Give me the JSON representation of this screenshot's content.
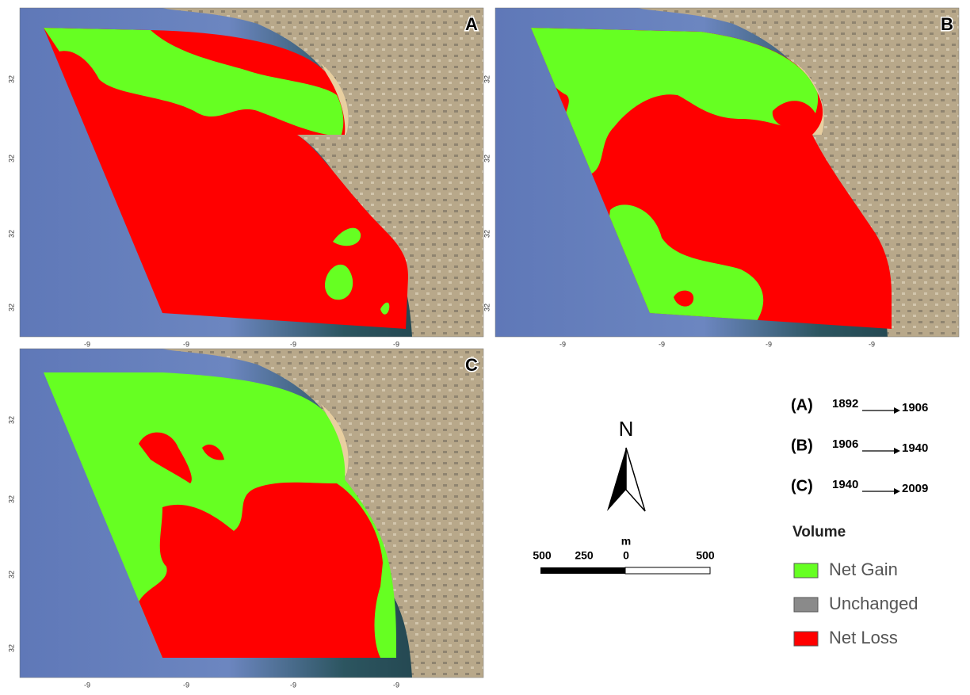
{
  "panels": [
    {
      "label": "A",
      "yticks": [
        "32",
        "32",
        "32",
        "32"
      ],
      "xticks": [
        "-9",
        "-9",
        "-9",
        "-9"
      ]
    },
    {
      "label": "B",
      "yticks": [
        "32",
        "32",
        "32",
        "32"
      ],
      "xticks": [
        "-9",
        "-9",
        "-9",
        "-9"
      ]
    },
    {
      "label": "C",
      "yticks": [
        "32",
        "32",
        "32",
        "32"
      ],
      "xticks": [
        "-9",
        "-9",
        "-9",
        "-9"
      ]
    }
  ],
  "north": "N",
  "scale_bar": {
    "unit": "m",
    "labels": [
      "500",
      "250",
      "0",
      "500"
    ]
  },
  "periods": [
    {
      "label": "(A)",
      "from": "1892",
      "to": "1906"
    },
    {
      "label": "(B)",
      "from": "1906",
      "to": "1940"
    },
    {
      "label": "(C)",
      "from": "1940",
      "to": "2009"
    }
  ],
  "legend": {
    "title": "Volume",
    "items": [
      {
        "name": "Net Gain",
        "color": "#66ff22"
      },
      {
        "name": "Unchanged",
        "color": "#8a8a8a"
      },
      {
        "name": "Net Loss",
        "color": "#ff0000"
      }
    ]
  }
}
